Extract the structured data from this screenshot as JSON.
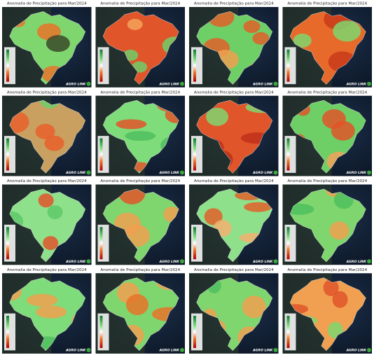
{
  "panels": [
    {
      "title": "Anomalia de Precipitação para Mar/2024",
      "logo": "AGRO LINK"
    },
    {
      "title": "Anomalia de Precipitação para Mar/2024",
      "logo": "AGRO LINK"
    },
    {
      "title": "Anomalia de Precipitação para Mar/2024",
      "logo": "AGRO LINK"
    },
    {
      "title": "Anomalia de Precipitação para Mar/2024",
      "logo": "AGRO LINK"
    },
    {
      "title": "Anomalia de Precipitação para Mar/2024",
      "logo": "AGRO LINK"
    },
    {
      "title": "Anomalia de Precipitação para Mar/2024",
      "logo": "AGRO LINK"
    },
    {
      "title": "Anomalia de Precipitação para Mar/2024",
      "logo": "AGRO LINK"
    },
    {
      "title": "Anomalia de Precipitação para Mar/2024",
      "logo": "AGRO LINK"
    },
    {
      "title": "Anomalia de Precipitação para Mar/2024",
      "logo": "AGRO LINK"
    },
    {
      "title": "Anomalia de Precipitação para Mar/2024",
      "logo": "AGRO LINK"
    },
    {
      "title": "Anomalia de Precipitação para Mar/2024",
      "logo": "AGRO LINK"
    },
    {
      "title": "Anomalia de Precipitação para Mar/2024",
      "logo": "AGRO LINK"
    },
    {
      "title": "Anomalia de Precipitação para Mar/2024",
      "logo": "AGRO LINK"
    },
    {
      "title": "Anomalia de Precipitação para Mar/2024",
      "logo": "AGRO LINK"
    },
    {
      "title": "Anomalia de Precipitação para Mar/2024",
      "logo": "AGRO LINK"
    },
    {
      "title": "Anomalia de Precipitação para Mar/2024",
      "logo": "AGRO LINK"
    }
  ]
}
